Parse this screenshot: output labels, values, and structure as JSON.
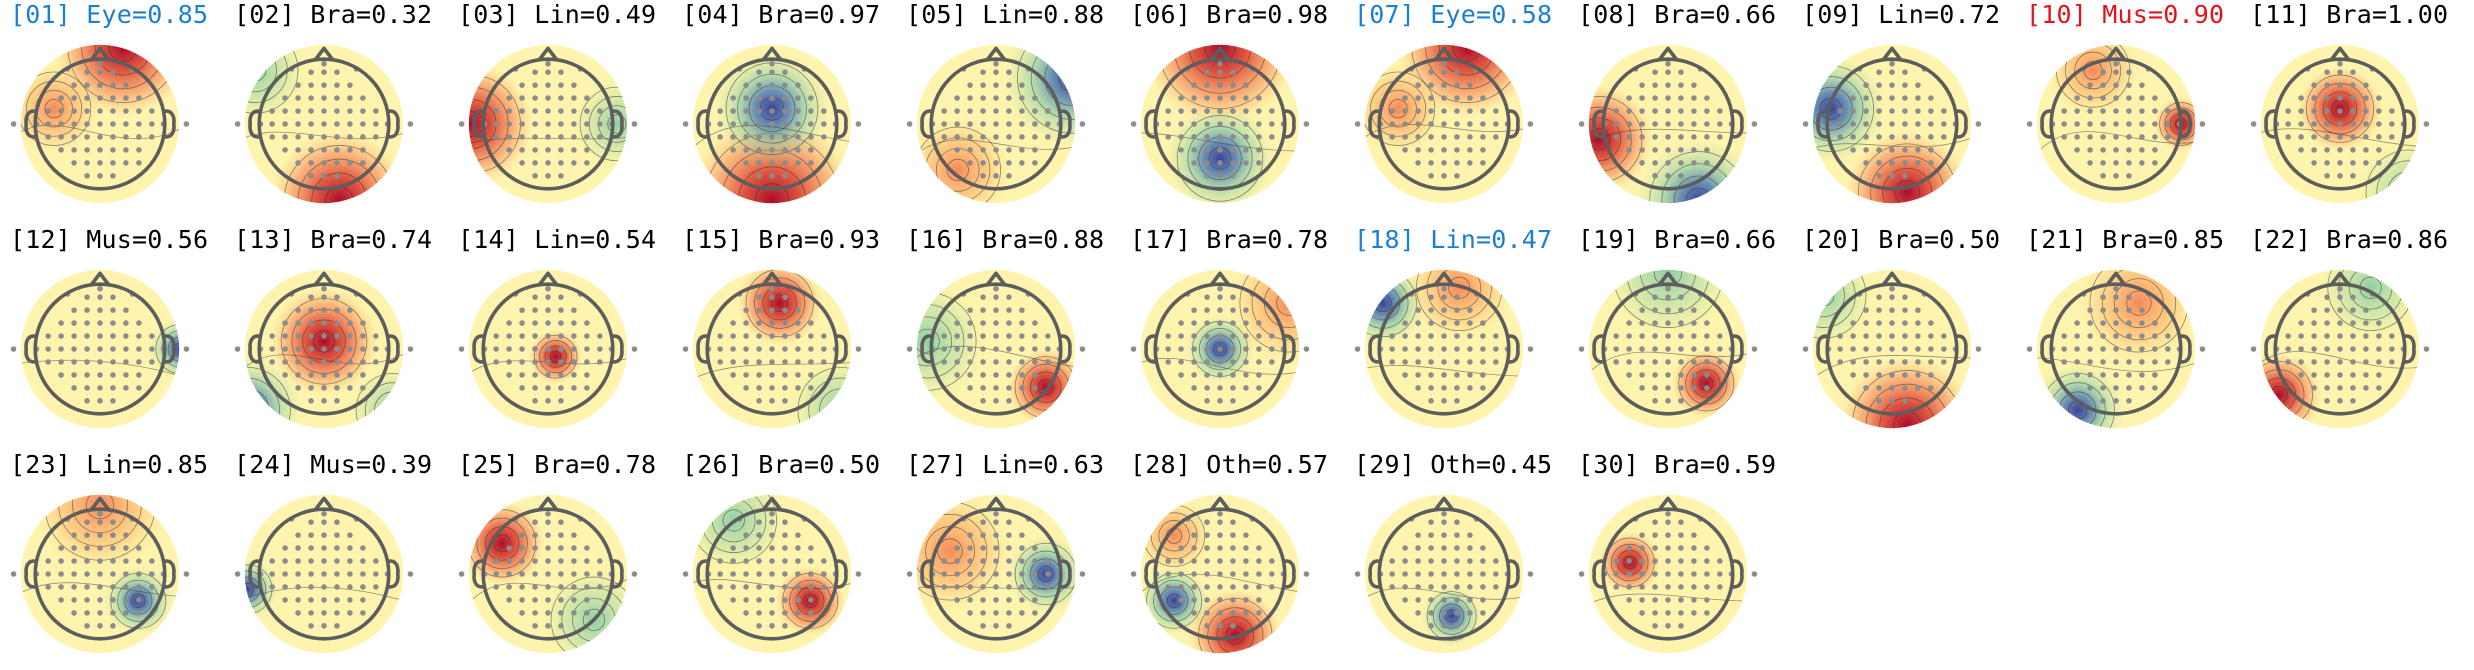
{
  "colors": {
    "eye_label": "#1a7fd6",
    "muscle_label": "#e3121b",
    "default_label": "#000000",
    "head_outline": "#5d5d5d",
    "sensor": "#8c8c8c",
    "contour": "#2b2b2b"
  },
  "components": [
    {
      "label": "[01] Eye=0.85",
      "highlight": "eye",
      "pattern": "frontal_red"
    },
    {
      "label": "[02] Bra=0.32",
      "highlight": "none",
      "pattern": "posterior_red"
    },
    {
      "label": "[03] Lin=0.49",
      "highlight": "none",
      "pattern": "left_red"
    },
    {
      "label": "[04] Bra=0.97",
      "highlight": "none",
      "pattern": "central_blue_ring"
    },
    {
      "label": "[05] Lin=0.88",
      "highlight": "none",
      "pattern": "right_blue"
    },
    {
      "label": "[06] Bra=0.98",
      "highlight": "none",
      "pattern": "front_red_back_blue"
    },
    {
      "label": "[07] Eye=0.58",
      "highlight": "eye",
      "pattern": "frontal_red"
    },
    {
      "label": "[08] Bra=0.66",
      "highlight": "none",
      "pattern": "posterior_blue"
    },
    {
      "label": "[09] Lin=0.72",
      "highlight": "none",
      "pattern": "left_blue"
    },
    {
      "label": "[10] Mus=0.90",
      "highlight": "muscle",
      "pattern": "right_red_spot"
    },
    {
      "label": "[11] Bra=1.00",
      "highlight": "none",
      "pattern": "central_red"
    },
    {
      "label": "[12] Mus=0.56",
      "highlight": "none",
      "pattern": "right_blue_edge"
    },
    {
      "label": "[13] Bra=0.74",
      "highlight": "none",
      "pattern": "central_red_blue_edges"
    },
    {
      "label": "[14] Lin=0.54",
      "highlight": "none",
      "pattern": "central_small_red"
    },
    {
      "label": "[15] Bra=0.93",
      "highlight": "none",
      "pattern": "frontal_red_spot"
    },
    {
      "label": "[16] Bra=0.88",
      "highlight": "none",
      "pattern": "right_post_red"
    },
    {
      "label": "[17] Bra=0.78",
      "highlight": "none",
      "pattern": "central_blue"
    },
    {
      "label": "[18] Lin=0.47",
      "highlight": "eye",
      "pattern": "left_front_blue"
    },
    {
      "label": "[19] Bra=0.66",
      "highlight": "none",
      "pattern": "right_post_red_small"
    },
    {
      "label": "[20] Bra=0.50",
      "highlight": "none",
      "pattern": "posterior_red"
    },
    {
      "label": "[21] Bra=0.85",
      "highlight": "none",
      "pattern": "left_post_blue"
    },
    {
      "label": "[22] Bra=0.86",
      "highlight": "none",
      "pattern": "left_post_red"
    },
    {
      "label": "[23] Lin=0.85",
      "highlight": "none",
      "pattern": "right_blue_spot"
    },
    {
      "label": "[24] Mus=0.39",
      "highlight": "none",
      "pattern": "left_blue_edge"
    },
    {
      "label": "[25] Bra=0.78",
      "highlight": "none",
      "pattern": "left_red_mix"
    },
    {
      "label": "[26] Bra=0.50",
      "highlight": "none",
      "pattern": "right_red_spot2"
    },
    {
      "label": "[27] Lin=0.63",
      "highlight": "none",
      "pattern": "right_blue_mid"
    },
    {
      "label": "[28] Oth=0.57",
      "highlight": "none",
      "pattern": "left_blue_mix"
    },
    {
      "label": "[29] Oth=0.45",
      "highlight": "none",
      "pattern": "post_blue_small"
    },
    {
      "label": "[30] Bra=0.59",
      "highlight": "none",
      "pattern": "left_red_small"
    }
  ]
}
